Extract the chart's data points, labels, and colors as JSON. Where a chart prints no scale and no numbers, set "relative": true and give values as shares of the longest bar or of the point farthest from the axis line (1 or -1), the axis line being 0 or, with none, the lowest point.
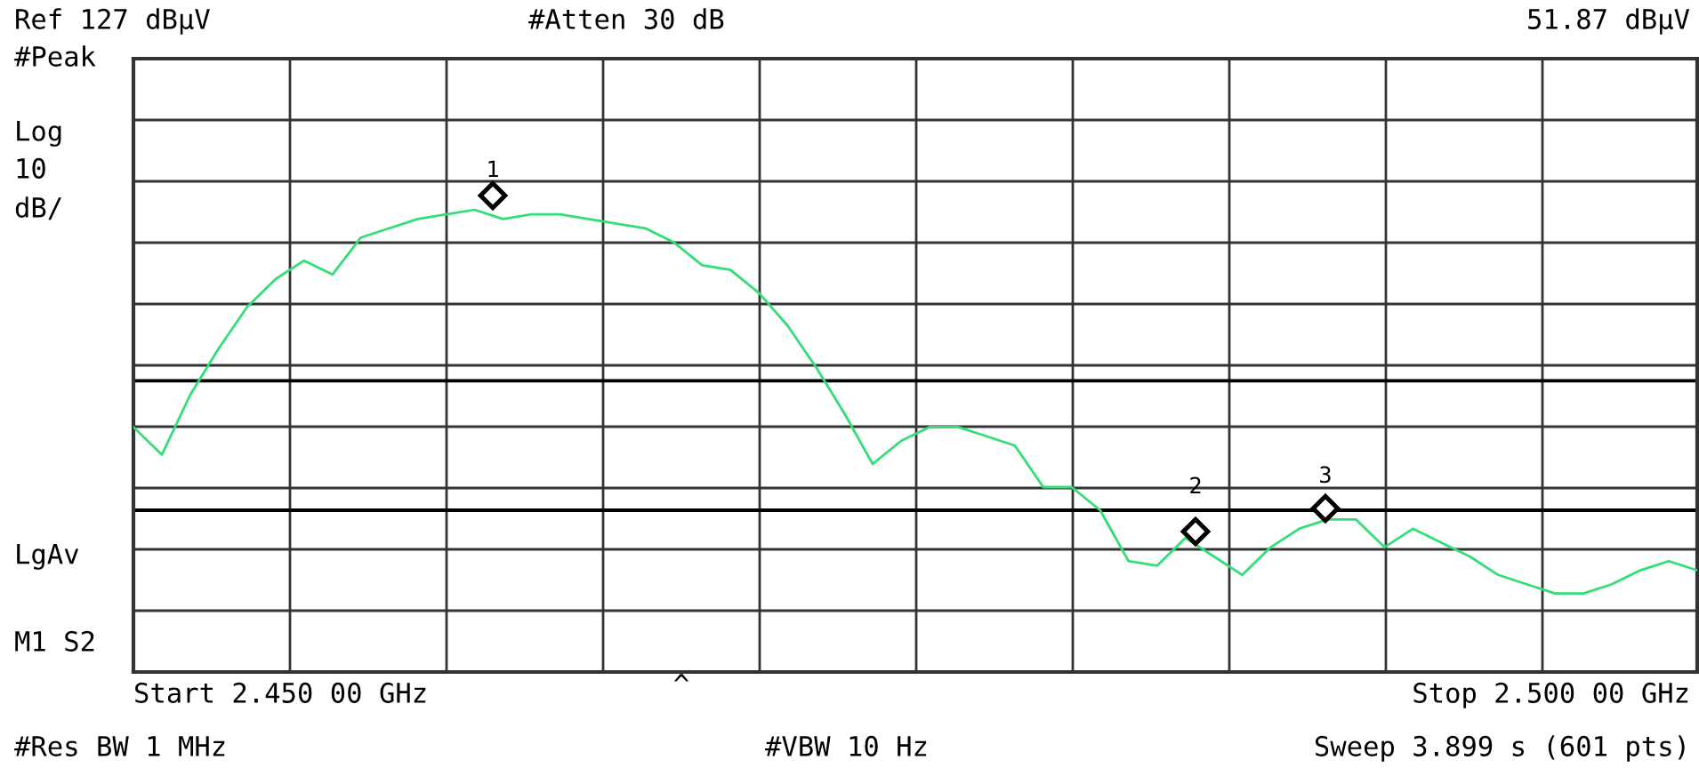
{
  "chart_data": {
    "type": "line",
    "relative": true,
    "grid": true,
    "legend": false,
    "marker": "none",
    "line_style": "solid",
    "categories": [
      null,
      null,
      null,
      null,
      null,
      null,
      null,
      null,
      null,
      null,
      null,
      null,
      null,
      null,
      null,
      null,
      null,
      null,
      null,
      null,
      null,
      null,
      null,
      null,
      null,
      null,
      null,
      null,
      null,
      null,
      null,
      null,
      null,
      null,
      null,
      null,
      null,
      null,
      null,
      null,
      null,
      null,
      null,
      null,
      null,
      null,
      null,
      null,
      null,
      null,
      null,
      null,
      null,
      null,
      null,
      null
    ],
    "series": [
      {
        "color": "#33dd77",
        "values": [
          0.53,
          0.47,
          0.6,
          0.7,
          0.79,
          0.85,
          0.89,
          0.86,
          0.94,
          0.96,
          0.98,
          0.99,
          1.0,
          0.98,
          0.99,
          0.99,
          0.98,
          0.97,
          0.96,
          0.93,
          0.88,
          0.87,
          0.82,
          0.75,
          0.66,
          0.56,
          0.45,
          0.5,
          0.53,
          0.53,
          0.51,
          0.49,
          0.4,
          0.4,
          0.35,
          0.24,
          0.23,
          0.29,
          0.25,
          0.21,
          0.27,
          0.31,
          0.33,
          0.33,
          0.27,
          0.31,
          0.28,
          0.25,
          0.21,
          0.19,
          0.17,
          0.17,
          0.19,
          0.22,
          0.24,
          0.22
        ]
      }
    ],
    "ref_lines": [
      {
        "axis": "y",
        "value": 0.63,
        "color": "#000000"
      },
      {
        "axis": "y",
        "value": 0.35,
        "color": "#000000"
      }
    ],
    "annotations": [
      "Ref 127 dBµV",
      "#Atten 30 dB",
      "51.87 dBµV",
      "#Peak",
      "Log",
      "10",
      "dB/",
      "LgAv",
      "M1 S2",
      "^",
      "#Res BW 1 MHz",
      "#VBW 10 Hz",
      "Sweep 3.899 s (601 pts)",
      "Start 2.450 00 GHz",
      "Stop 2.500 00 GHz",
      "1",
      "2",
      "3"
    ]
  }
}
